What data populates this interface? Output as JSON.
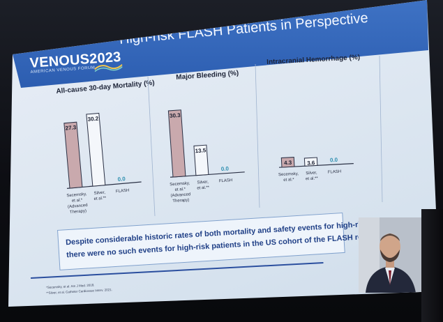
{
  "slide": {
    "logo_main": "VENOUS",
    "logo_year": "2023",
    "logo_sub": "AMERICAN VENOUS FORUM",
    "title": "High-risk FLASH Patients in Perspective",
    "banner_line1": "Despite considerable historic rates of both mortality and safety events for high-risk",
    "banner_line2": "there were no such events for high-risk patients in the US cohort of the FLASH regis",
    "ref1": "*Secemsky, et al. Am J Med. 2018.",
    "ref2": "**Silver, et al. Catheter Cardiovasc Interv. 2021."
  },
  "chart_data": [
    {
      "type": "bar",
      "title": "All-cause 30-day Mortality (%)",
      "categories": [
        "Secemsky, et al.* (Advanced Therapy)",
        "Silver, et al.**",
        "FLASH"
      ],
      "category_lines": [
        [
          "Secemsky,",
          "et al.*",
          "(Advanced",
          "Therapy)"
        ],
        [
          "Silver,",
          "et al.**"
        ],
        [
          "FLASH"
        ]
      ],
      "values": [
        27.3,
        30.2,
        0.0
      ],
      "value_labels": [
        "27.3",
        "30.2",
        "0.0"
      ],
      "ylim": [
        0,
        35
      ]
    },
    {
      "type": "bar",
      "title": "Major Bleeding (%)",
      "categories": [
        "Secemsky, et al.* (Advanced Therapy)",
        "Silver, et al.**",
        "FLASH"
      ],
      "category_lines": [
        [
          "Secemsky,",
          "et al.*",
          "(Advanced",
          "Therapy)"
        ],
        [
          "Silver,",
          "et al.**"
        ],
        [
          "FLASH"
        ]
      ],
      "values": [
        30.3,
        13.5,
        0.0
      ],
      "value_labels": [
        "30.3",
        "13.5",
        "0.0"
      ],
      "ylim": [
        0,
        35
      ]
    },
    {
      "type": "bar",
      "title": "Intracranial Hemorrhage (%)",
      "categories": [
        "Secemsky, et al.*",
        "Silver, et al.**",
        "FLASH"
      ],
      "category_lines": [
        [
          "Secemsky,",
          "et al.*"
        ],
        [
          "Silver,",
          "et al.**"
        ],
        [
          "FLASH"
        ]
      ],
      "values": [
        4.3,
        3.6,
        0.0
      ],
      "value_labels": [
        "4.3",
        "3.6",
        "0.0"
      ],
      "ylim": [
        0,
        35
      ]
    }
  ],
  "colors": {
    "header": "#2c5db0",
    "bar_first": "#c9a9ad",
    "bar_other": "#f4f7fb",
    "zero_label": "#2e8fb0",
    "banner_text": "#1f3f86"
  }
}
